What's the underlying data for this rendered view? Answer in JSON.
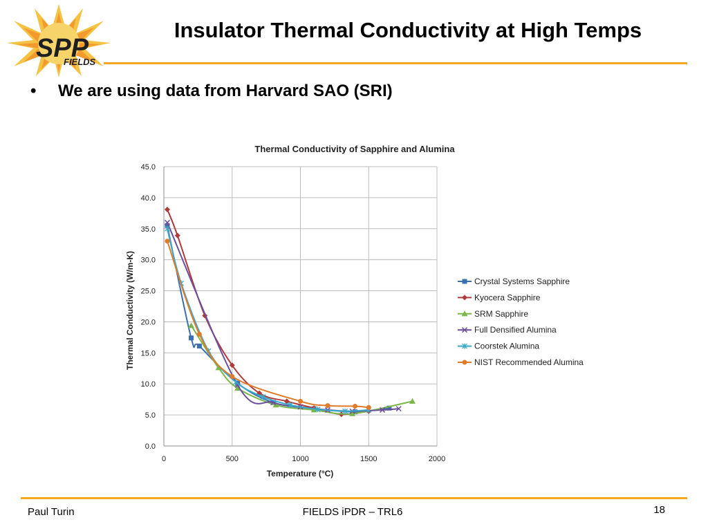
{
  "slide": {
    "title": "Insulator Thermal Conductivity at High Temps",
    "bullet": "We are using data from Harvard SAO (SRI)",
    "footer_left": "Paul Turin",
    "footer_center": "FIELDS iPDR – TRL6",
    "page_number": "18",
    "logo_text": "SPP",
    "logo_subtext": "FIELDS",
    "accent_color": "#f5a623"
  },
  "chart_data": {
    "type": "line",
    "title": "Thermal Conductivity of Sapphire and Alumina",
    "xlabel": "Temperature (°C)",
    "ylabel": "Thermal Conductivity (W/m-K)",
    "xlim": [
      0,
      2000
    ],
    "ylim": [
      0,
      45
    ],
    "xticks": [
      0,
      500,
      1000,
      1500,
      2000
    ],
    "yticks": [
      0,
      5,
      10,
      15,
      20,
      25,
      30,
      35,
      40,
      45
    ],
    "ytick_labels": [
      "0.0",
      "5.0",
      "10.0",
      "15.0",
      "20.0",
      "25.0",
      "30.0",
      "35.0",
      "40.0",
      "45.0"
    ],
    "grid": true,
    "legend_position": "right",
    "series": [
      {
        "name": "Crystal Systems Sapphire",
        "color": "#3a6fb0",
        "marker": "square",
        "x": [
          25,
          200,
          260,
          540,
          800,
          1100,
          1400,
          1650
        ],
        "y": [
          35.5,
          17.4,
          16.1,
          10.1,
          7.0,
          6.0,
          5.5,
          6.1
        ]
      },
      {
        "name": "Kyocera Sapphire",
        "color": "#b03a3a",
        "marker": "diamond",
        "x": [
          25,
          100,
          300,
          500,
          700,
          900,
          1100,
          1300,
          1500
        ],
        "y": [
          38.1,
          33.9,
          21.0,
          13.0,
          8.5,
          7.2,
          6.1,
          5.1,
          5.6
        ]
      },
      {
        "name": "SRM Sapphire",
        "color": "#7ab648",
        "marker": "triangle",
        "x": [
          200,
          400,
          540,
          820,
          1100,
          1380,
          1820
        ],
        "y": [
          19.4,
          12.6,
          9.3,
          6.6,
          5.8,
          5.2,
          7.2
        ]
      },
      {
        "name": "Full Densified Alumina",
        "color": "#6a4f9e",
        "marker": "x",
        "x": [
          25,
          540,
          800,
          1000,
          1200,
          1380,
          1600,
          1720
        ],
        "y": [
          36.0,
          9.8,
          7.0,
          6.3,
          5.8,
          5.6,
          5.8,
          6.0
        ]
      },
      {
        "name": "Coorstek Alumina",
        "color": "#3aa8c8",
        "marker": "star",
        "x": [
          25,
          127,
          327,
          527,
          727,
          927,
          1127,
          1327,
          1500
        ],
        "y": [
          35.0,
          26.2,
          15.3,
          10.3,
          7.9,
          6.6,
          5.9,
          5.6,
          5.8
        ]
      },
      {
        "name": "NIST Recommended Alumina",
        "color": "#e07b2a",
        "marker": "circle",
        "x": [
          25,
          260,
          500,
          1000,
          1200,
          1400,
          1500
        ],
        "y": [
          33.0,
          18.0,
          11.2,
          7.2,
          6.5,
          6.4,
          6.2
        ]
      }
    ]
  }
}
